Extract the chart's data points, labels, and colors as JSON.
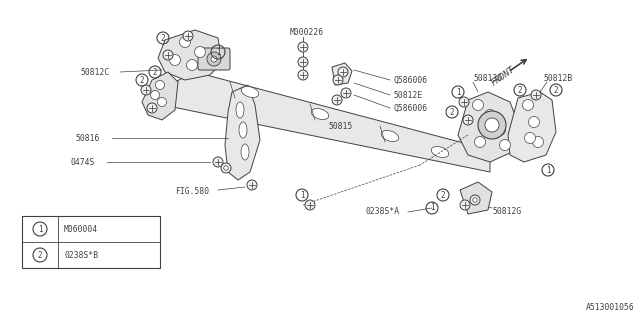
{
  "bg_color": "#ffffff",
  "line_color": "#404040",
  "fig_size": [
    6.4,
    3.2
  ],
  "dpi": 100,
  "diagram_id": "A513001056",
  "legend_items": [
    {
      "num": "1",
      "text": "M060004"
    },
    {
      "num": "2",
      "text": "0238S*B"
    }
  ]
}
